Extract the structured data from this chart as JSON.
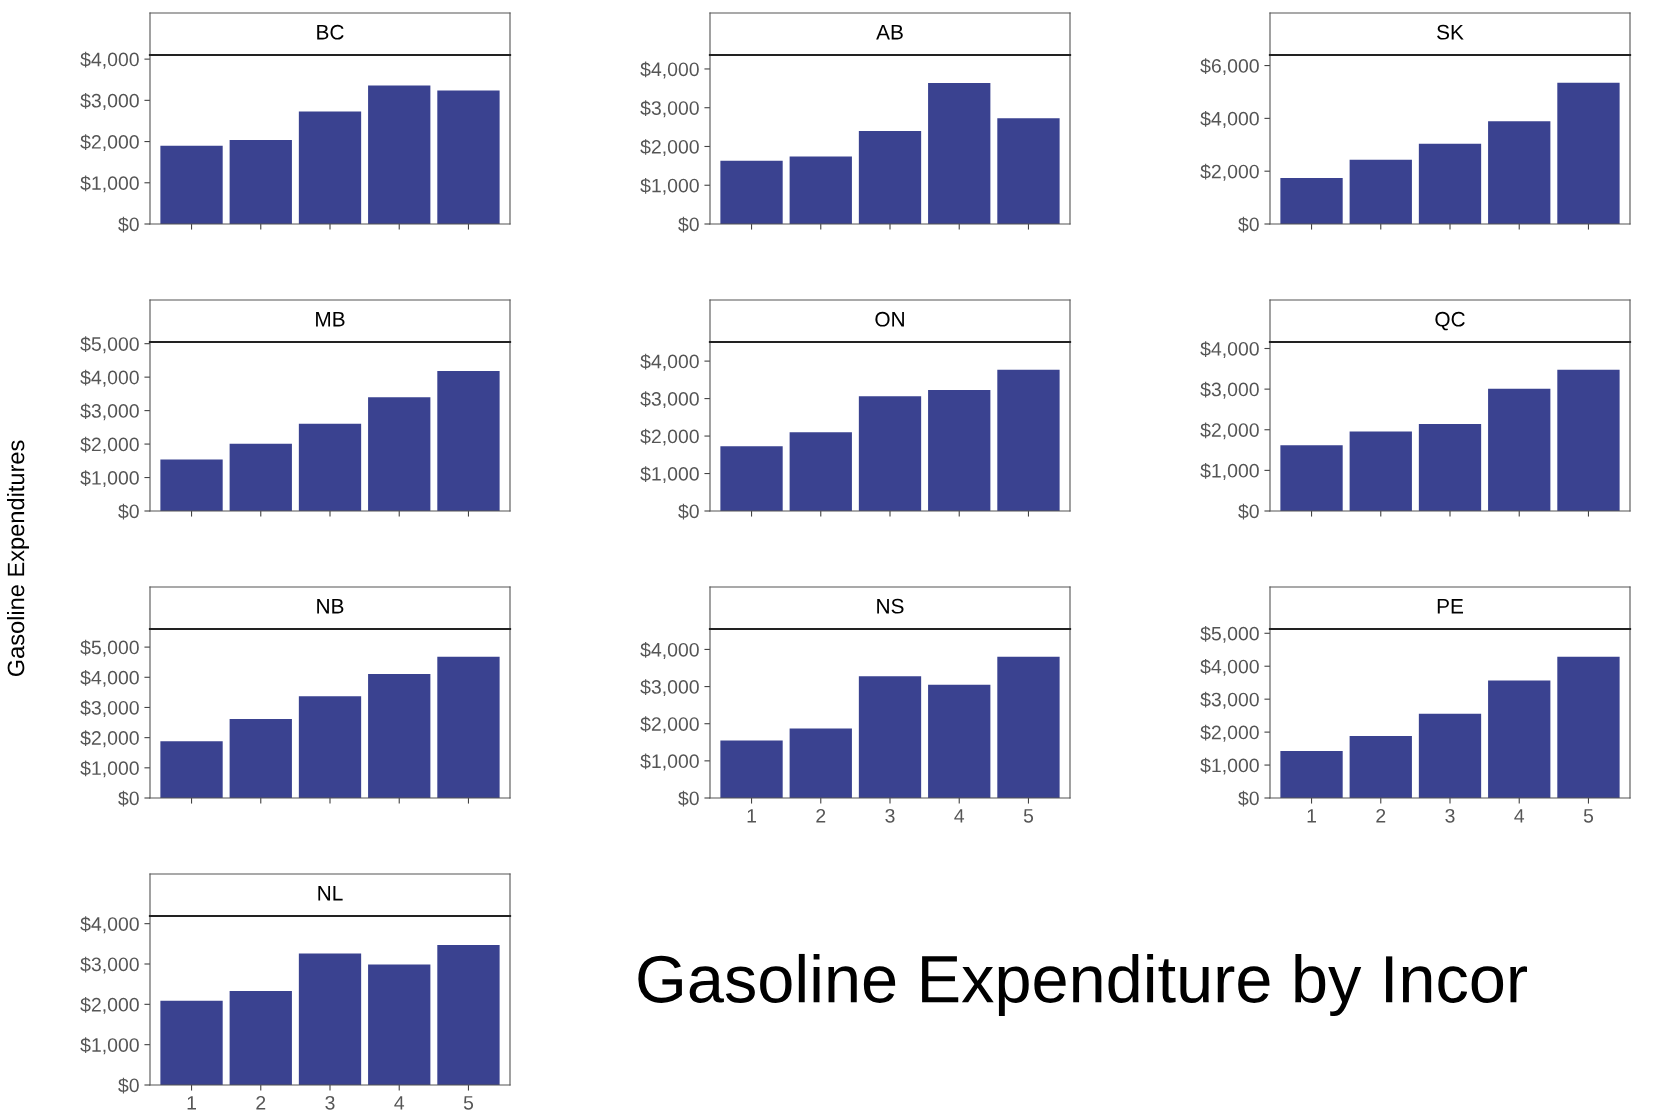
{
  "chart_data": [
    {
      "type": "bar",
      "title": "BC",
      "categories": [
        "1",
        "2",
        "3",
        "4",
        "5"
      ],
      "values": [
        1900,
        2040,
        2730,
        3360,
        3240
      ],
      "color": "#3a4290",
      "ylim": [
        0,
        4100
      ],
      "yticks": [
        {
          "value": 0,
          "label": "$0"
        },
        {
          "value": 1000,
          "label": "$1,000"
        },
        {
          "value": 2000,
          "label": "$2,000"
        },
        {
          "value": 3000,
          "label": "$3,000"
        },
        {
          "value": 4000,
          "label": "$4,000"
        }
      ],
      "tick_labels": "y"
    },
    {
      "type": "bar",
      "title": "AB",
      "categories": [
        "1",
        "2",
        "3",
        "4",
        "5"
      ],
      "values": [
        1630,
        1740,
        2400,
        3640,
        2730
      ],
      "color": "#3a4290",
      "ylim": [
        0,
        4360
      ],
      "yticks": [
        {
          "value": 0,
          "label": "$0"
        },
        {
          "value": 1000,
          "label": "$1,000"
        },
        {
          "value": 2000,
          "label": "$2,000"
        },
        {
          "value": 3000,
          "label": "$3,000"
        },
        {
          "value": 4000,
          "label": "$4,000"
        }
      ],
      "tick_labels": "y"
    },
    {
      "type": "bar",
      "title": "SK",
      "categories": [
        "1",
        "2",
        "3",
        "4",
        "5"
      ],
      "values": [
        1740,
        2430,
        3040,
        3890,
        5350
      ],
      "color": "#3a4290",
      "ylim": [
        0,
        6400
      ],
      "yticks": [
        {
          "value": 0,
          "label": "$0"
        },
        {
          "value": 2000,
          "label": "$2,000"
        },
        {
          "value": 4000,
          "label": "$4,000"
        },
        {
          "value": 6000,
          "label": "$6,000"
        }
      ],
      "tick_labels": "y"
    },
    {
      "type": "bar",
      "title": "MB",
      "ylabel": "Gasoline Expenditures",
      "categories": [
        "1",
        "2",
        "3",
        "4",
        "5"
      ],
      "values": [
        1540,
        2010,
        2610,
        3400,
        4180
      ],
      "color": "#3a4290",
      "ylim": [
        0,
        5050
      ],
      "yticks": [
        {
          "value": 0,
          "label": "$0"
        },
        {
          "value": 1000,
          "label": "$1,000"
        },
        {
          "value": 2000,
          "label": "$2,000"
        },
        {
          "value": 3000,
          "label": "$3,000"
        },
        {
          "value": 4000,
          "label": "$4,000"
        },
        {
          "value": 5000,
          "label": "$5,000"
        }
      ],
      "tick_labels": "y"
    },
    {
      "type": "bar",
      "title": "ON",
      "categories": [
        "1",
        "2",
        "3",
        "4",
        "5"
      ],
      "values": [
        1730,
        2100,
        3060,
        3230,
        3770
      ],
      "color": "#3a4290",
      "ylim": [
        0,
        4510
      ],
      "yticks": [
        {
          "value": 0,
          "label": "$0"
        },
        {
          "value": 1000,
          "label": "$1,000"
        },
        {
          "value": 2000,
          "label": "$2,000"
        },
        {
          "value": 3000,
          "label": "$3,000"
        },
        {
          "value": 4000,
          "label": "$4,000"
        }
      ],
      "tick_labels": "y"
    },
    {
      "type": "bar",
      "title": "QC",
      "categories": [
        "1",
        "2",
        "3",
        "4",
        "5"
      ],
      "values": [
        1620,
        1960,
        2140,
        3010,
        3480
      ],
      "color": "#3a4290",
      "ylim": [
        0,
        4160
      ],
      "yticks": [
        {
          "value": 0,
          "label": "$0"
        },
        {
          "value": 1000,
          "label": "$1,000"
        },
        {
          "value": 2000,
          "label": "$2,000"
        },
        {
          "value": 3000,
          "label": "$3,000"
        },
        {
          "value": 4000,
          "label": "$4,000"
        }
      ],
      "tick_labels": "y"
    },
    {
      "type": "bar",
      "title": "NB",
      "categories": [
        "1",
        "2",
        "3",
        "4",
        "5"
      ],
      "values": [
        1880,
        2620,
        3370,
        4110,
        4680
      ],
      "color": "#3a4290",
      "ylim": [
        0,
        5600
      ],
      "yticks": [
        {
          "value": 0,
          "label": "$0"
        },
        {
          "value": 1000,
          "label": "$1,000"
        },
        {
          "value": 2000,
          "label": "$2,000"
        },
        {
          "value": 3000,
          "label": "$3,000"
        },
        {
          "value": 4000,
          "label": "$4,000"
        },
        {
          "value": 5000,
          "label": "$5,000"
        }
      ],
      "tick_labels": "y"
    },
    {
      "type": "bar",
      "title": "NS",
      "categories": [
        "1",
        "2",
        "3",
        "4",
        "5"
      ],
      "values": [
        1550,
        1870,
        3280,
        3050,
        3800
      ],
      "color": "#3a4290",
      "ylim": [
        0,
        4550
      ],
      "yticks": [
        {
          "value": 0,
          "label": "$0"
        },
        {
          "value": 1000,
          "label": "$1,000"
        },
        {
          "value": 2000,
          "label": "$2,000"
        },
        {
          "value": 3000,
          "label": "$3,000"
        },
        {
          "value": 4000,
          "label": "$4,000"
        }
      ]
    },
    {
      "type": "bar",
      "title": "PE",
      "categories": [
        "1",
        "2",
        "3",
        "4",
        "5"
      ],
      "values": [
        1430,
        1880,
        2560,
        3570,
        4290
      ],
      "color": "#3a4290",
      "ylim": [
        0,
        5130
      ],
      "yticks": [
        {
          "value": 0,
          "label": "$0"
        },
        {
          "value": 1000,
          "label": "$1,000"
        },
        {
          "value": 2000,
          "label": "$2,000"
        },
        {
          "value": 3000,
          "label": "$3,000"
        },
        {
          "value": 4000,
          "label": "$4,000"
        },
        {
          "value": 5000,
          "label": "$5,000"
        }
      ]
    },
    {
      "type": "bar",
      "title": "NL",
      "categories": [
        "1",
        "2",
        "3",
        "4",
        "5"
      ],
      "values": [
        2090,
        2330,
        3260,
        2990,
        3470
      ],
      "color": "#3a4290",
      "ylim": [
        0,
        4190
      ],
      "yticks": [
        {
          "value": 0,
          "label": "$0"
        },
        {
          "value": 1000,
          "label": "$1,000"
        },
        {
          "value": 2000,
          "label": "$2,000"
        },
        {
          "value": 3000,
          "label": "$3,000"
        },
        {
          "value": 4000,
          "label": "$4,000"
        }
      ]
    },
    {
      "type": "other",
      "title": "Gasoline Expenditure by Incor"
    }
  ]
}
